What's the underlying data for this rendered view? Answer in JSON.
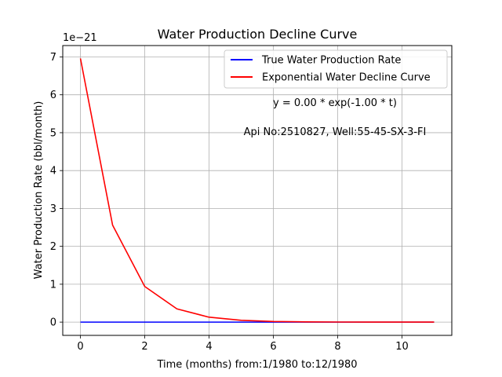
{
  "chart_data": {
    "type": "line",
    "title": "Water Production Decline Curve",
    "xlabel": "Time (months) from:1/1980 to:12/1980",
    "ylabel": "Water Production Rate (bbl/month)",
    "y_offset_text": "1e−21",
    "xlim": [
      -0.55,
      11.55
    ],
    "ylim": [
      -0.35,
      7.3
    ],
    "grid": true,
    "legend_position": "top-right",
    "x_ticks": [
      0,
      2,
      4,
      6,
      8,
      10
    ],
    "x_tick_labels": [
      "0",
      "2",
      "4",
      "6",
      "8",
      "10"
    ],
    "y_ticks": [
      0,
      1,
      2,
      3,
      4,
      5,
      6,
      7
    ],
    "y_tick_labels": [
      "0",
      "1",
      "2",
      "3",
      "4",
      "5",
      "6",
      "7"
    ],
    "x": [
      0,
      1,
      2,
      3,
      4,
      5,
      6,
      7,
      8,
      9,
      10,
      11
    ],
    "series": [
      {
        "name": "True Water Production Rate",
        "color": "#0000ff",
        "values": [
          0,
          0,
          0,
          0,
          0,
          0,
          0,
          0,
          0,
          0,
          0,
          0
        ]
      },
      {
        "name": "Exponential Water Decline Curve",
        "color": "#ff0000",
        "values": [
          6.96,
          2.56,
          0.94,
          0.35,
          0.13,
          0.047,
          0.017,
          0.0064,
          0.0024,
          0.00086,
          0.00032,
          0.00012
        ]
      }
    ],
    "annotations": [
      "y = 0.00 * exp(-1.00 * t)",
      "Api No:2510827, Well:55-45-SX-3-FI"
    ]
  }
}
